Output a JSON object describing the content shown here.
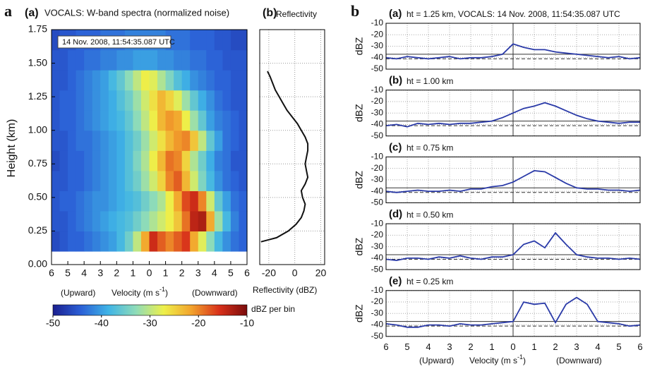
{
  "figure": {
    "panel_a": "a",
    "panel_b": "b"
  },
  "chart_data": [
    {
      "type": "heatmap",
      "panel_label": "(a)",
      "title": "VOCALS: W-band  spectra (normalized noise)",
      "annotation": "14 Nov. 2008, 11:54:35.087 UTC",
      "ylabel": "Height (km)",
      "xlabel_left": "(Upward)",
      "xlabel_parts": [
        "Velocity (m s",
        "-1",
        ")"
      ],
      "xlabel_right": "(Downward)",
      "xlim": [
        -6,
        6
      ],
      "ylim": [
        0,
        1.75
      ],
      "xticks": [
        {
          "value": -6,
          "label": "6"
        },
        {
          "value": -5,
          "label": "5"
        },
        {
          "value": -4,
          "label": "4"
        },
        {
          "value": -3,
          "label": "3"
        },
        {
          "value": -2,
          "label": "2"
        },
        {
          "value": -1,
          "label": "1"
        },
        0,
        1,
        2,
        3,
        4,
        5,
        6
      ],
      "yticks": [
        {
          "value": 0,
          "label": "0.00"
        },
        {
          "value": 0.25,
          "label": "0.25"
        },
        {
          "value": 0.5,
          "label": "0.50"
        },
        {
          "value": 0.75,
          "label": "0.75"
        },
        {
          "value": 1,
          "label": "1.00"
        },
        {
          "value": 1.25,
          "label": "1.25"
        },
        {
          "value": 1.5,
          "label": "1.50"
        },
        {
          "value": 1.75,
          "label": "1.75"
        }
      ],
      "x_edges": [
        -6,
        -5.5,
        -5,
        -4.5,
        -4,
        -3.5,
        -3,
        -2.5,
        -2,
        -1.5,
        -1,
        -0.5,
        0,
        0.5,
        1,
        1.5,
        2,
        2.5,
        3,
        3.5,
        4,
        4.5,
        5,
        5.5,
        6
      ],
      "y_edges": [
        0.1,
        0.25,
        0.4,
        0.55,
        0.7,
        0.85,
        1.0,
        1.15,
        1.3,
        1.45,
        1.6,
        1.75
      ],
      "values": [
        [
          -46,
          -45,
          -44,
          -44,
          -43,
          -42,
          -41,
          -40,
          -38,
          -35,
          -30,
          -22,
          -15,
          -18,
          -20,
          -18,
          -16,
          -22,
          -28,
          -33,
          -38,
          -41,
          -43,
          -44
        ],
        [
          -45,
          -45,
          -44,
          -43,
          -42,
          -41,
          -40,
          -39,
          -38,
          -37,
          -35,
          -33,
          -31,
          -29,
          -27,
          -24,
          -19,
          -14,
          -13,
          -22,
          -32,
          -38,
          -42,
          -44
        ],
        [
          -45,
          -44,
          -44,
          -43,
          -42,
          -41,
          -41,
          -40,
          -39,
          -38,
          -37,
          -35,
          -33,
          -31,
          -27,
          -22,
          -17,
          -15,
          -20,
          -29,
          -36,
          -40,
          -43,
          -44
        ],
        [
          -45,
          -45,
          -44,
          -44,
          -43,
          -42,
          -41,
          -40,
          -39,
          -37,
          -35,
          -32,
          -29,
          -25,
          -20,
          -18,
          -23,
          -29,
          -34,
          -38,
          -41,
          -43,
          -44,
          -45
        ],
        [
          -46,
          -45,
          -44,
          -44,
          -43,
          -42,
          -41,
          -40,
          -39,
          -37,
          -34,
          -31,
          -27,
          -23,
          -19,
          -20,
          -25,
          -31,
          -35,
          -39,
          -42,
          -43,
          -45,
          -45
        ],
        [
          -45,
          -45,
          -44,
          -43,
          -43,
          -42,
          -41,
          -40,
          -39,
          -37,
          -35,
          -32,
          -29,
          -26,
          -23,
          -21,
          -20,
          -24,
          -30,
          -36,
          -40,
          -43,
          -44,
          -45
        ],
        [
          -45,
          -44,
          -44,
          -43,
          -42,
          -41,
          -40,
          -39,
          -38,
          -36,
          -33,
          -30,
          -27,
          -23,
          -21,
          -22,
          -27,
          -32,
          -36,
          -40,
          -42,
          -43,
          -44,
          -45
        ],
        [
          -45,
          -44,
          -44,
          -43,
          -42,
          -41,
          -40,
          -39,
          -37,
          -35,
          -32,
          -29,
          -26,
          -23,
          -25,
          -28,
          -32,
          -36,
          -39,
          -41,
          -43,
          -44,
          -45,
          -45
        ],
        [
          -45,
          -45,
          -44,
          -43,
          -42,
          -41,
          -40,
          -38,
          -36,
          -33,
          -30,
          -27,
          -28,
          -31,
          -34,
          -37,
          -39,
          -41,
          -42,
          -43,
          -44,
          -44,
          -45,
          -45
        ],
        [
          -45,
          -45,
          -44,
          -44,
          -43,
          -43,
          -42,
          -42,
          -41,
          -41,
          -40,
          -40,
          -40,
          -41,
          -41,
          -42,
          -42,
          -43,
          -43,
          -44,
          -44,
          -45,
          -45,
          -45
        ],
        [
          -46,
          -45,
          -45,
          -44,
          -44,
          -44,
          -43,
          -43,
          -43,
          -42,
          -42,
          -42,
          -42,
          -42,
          -43,
          -43,
          -43,
          -44,
          -44,
          -44,
          -45,
          -45,
          -46,
          -46
        ]
      ],
      "colormap": [
        "#1b1f8f",
        "#2b5fd6",
        "#3fb4e6",
        "#8fdcb8",
        "#eef04a",
        "#f2a22c",
        "#d8301a",
        "#7a0c0c"
      ],
      "colorbar": {
        "label": "dBZ per bin",
        "lim": [
          -50,
          -10
        ],
        "ticks": [
          -50,
          -40,
          -30,
          -20,
          -10
        ]
      }
    },
    {
      "type": "profile",
      "panel_label": "(b)",
      "title": "Reflectivity",
      "xlabel": "Reflectivity (dBZ)",
      "xlim": [
        -27,
        23
      ],
      "ylim": [
        0,
        1.75
      ],
      "xticks": [
        -20,
        0,
        20
      ],
      "yticks": [
        0,
        0.25,
        0.5,
        0.75,
        1,
        1.25,
        1.5,
        1.75
      ],
      "show_ytick_labels": false,
      "grid": true,
      "color": "#111111",
      "y": [
        1.44,
        1.4,
        1.35,
        1.3,
        1.25,
        1.2,
        1.15,
        1.1,
        1.05,
        1.0,
        0.95,
        0.9,
        0.85,
        0.8,
        0.75,
        0.7,
        0.65,
        0.6,
        0.55,
        0.5,
        0.45,
        0.4,
        0.35,
        0.3,
        0.25,
        0.2,
        0.17
      ],
      "values": [
        -21,
        -19,
        -17,
        -15,
        -12,
        -9,
        -6,
        -2,
        2,
        5,
        8,
        10,
        10,
        9,
        8,
        9,
        10,
        8,
        5,
        6,
        8,
        7,
        5,
        1,
        -5,
        -14,
        -26
      ]
    },
    {
      "type": "line",
      "panel_label": "(a)",
      "title": "ht = 1.25 km, VOCALS: 14 Nov. 2008, 11:54:35.087 UTC",
      "ylabel": "dBZ",
      "xlim": [
        -6,
        6
      ],
      "ylim": [
        -50,
        -10
      ],
      "yticks": [
        -10,
        -20,
        -30,
        -40,
        -50
      ],
      "grid": true,
      "vlines": [
        0
      ],
      "xticks": [
        -6,
        -5,
        -4,
        -3,
        -2,
        -1,
        0,
        1,
        2,
        3,
        4,
        5,
        6
      ],
      "show_xtick_labels": false,
      "hlines": [
        {
          "value": -37,
          "dashed": false
        },
        {
          "value": -41,
          "dashed": true
        }
      ],
      "color": "#2a3aa8",
      "x": [
        -6,
        -5.5,
        -5,
        -4.5,
        -4,
        -3.5,
        -3,
        -2.5,
        -2,
        -1.5,
        -1,
        -0.5,
        0,
        0.5,
        1,
        1.5,
        2,
        2.5,
        3,
        3.5,
        4,
        4.5,
        5,
        5.5,
        6
      ],
      "values": [
        -40,
        -41,
        -39,
        -40,
        -41,
        -40,
        -39,
        -41,
        -40,
        -40,
        -39,
        -37,
        -28,
        -31,
        -33,
        -33,
        -35,
        -36,
        -37,
        -38,
        -39,
        -40,
        -39,
        -41,
        -40
      ]
    },
    {
      "type": "line",
      "panel_label": "(b)",
      "title": "ht = 1.00 km",
      "ylabel": "dBZ",
      "xlim": [
        -6,
        6
      ],
      "ylim": [
        -50,
        -10
      ],
      "yticks": [
        -10,
        -20,
        -30,
        -40,
        -50
      ],
      "grid": true,
      "vlines": [
        0
      ],
      "xticks": [
        -6,
        -5,
        -4,
        -3,
        -2,
        -1,
        0,
        1,
        2,
        3,
        4,
        5,
        6
      ],
      "show_xtick_labels": false,
      "hlines": [
        {
          "value": -37,
          "dashed": false
        },
        {
          "value": -41,
          "dashed": true
        }
      ],
      "color": "#2a3aa8",
      "x": [
        -6,
        -5.5,
        -5,
        -4.5,
        -4,
        -3.5,
        -3,
        -2.5,
        -2,
        -1.5,
        -1,
        -0.5,
        0,
        0.5,
        1,
        1.5,
        2,
        2.5,
        3,
        3.5,
        4,
        4.5,
        5,
        5.5,
        6
      ],
      "values": [
        -41,
        -40,
        -42,
        -39,
        -40,
        -39,
        -40,
        -39,
        -39,
        -38,
        -37,
        -34,
        -30,
        -26,
        -24,
        -21,
        -24,
        -28,
        -32,
        -35,
        -37,
        -38,
        -39,
        -38,
        -38
      ]
    },
    {
      "type": "line",
      "panel_label": "(c)",
      "title": "ht = 0.75 km",
      "ylabel": "dBZ",
      "xlim": [
        -6,
        6
      ],
      "ylim": [
        -50,
        -10
      ],
      "yticks": [
        -10,
        -20,
        -30,
        -40,
        -50
      ],
      "grid": true,
      "vlines": [
        0
      ],
      "xticks": [
        -6,
        -5,
        -4,
        -3,
        -2,
        -1,
        0,
        1,
        2,
        3,
        4,
        5,
        6
      ],
      "show_xtick_labels": false,
      "hlines": [
        {
          "value": -37,
          "dashed": false
        },
        {
          "value": -41,
          "dashed": true
        }
      ],
      "color": "#2a3aa8",
      "x": [
        -6,
        -5.5,
        -5,
        -4.5,
        -4,
        -3.5,
        -3,
        -2.5,
        -2,
        -1.5,
        -1,
        -0.5,
        0,
        0.5,
        1,
        1.5,
        2,
        2.5,
        3,
        3.5,
        4,
        4.5,
        5,
        5.5,
        6
      ],
      "values": [
        -40,
        -41,
        -40,
        -39,
        -40,
        -40,
        -39,
        -40,
        -38,
        -38,
        -36,
        -35,
        -32,
        -27,
        -22,
        -23,
        -28,
        -33,
        -37,
        -38,
        -38,
        -39,
        -39,
        -40,
        -39
      ]
    },
    {
      "type": "line",
      "panel_label": "(d)",
      "title": "ht = 0.50 km",
      "ylabel": "dBZ",
      "xlim": [
        -6,
        6
      ],
      "ylim": [
        -50,
        -10
      ],
      "yticks": [
        -10,
        -20,
        -30,
        -40,
        -50
      ],
      "grid": true,
      "vlines": [
        0
      ],
      "xticks": [
        -6,
        -5,
        -4,
        -3,
        -2,
        -1,
        0,
        1,
        2,
        3,
        4,
        5,
        6
      ],
      "show_xtick_labels": false,
      "hlines": [
        {
          "value": -37,
          "dashed": false
        },
        {
          "value": -41,
          "dashed": true
        }
      ],
      "color": "#2a3aa8",
      "x": [
        -6,
        -5.5,
        -5,
        -4.5,
        -4,
        -3.5,
        -3,
        -2.5,
        -2,
        -1.5,
        -1,
        -0.5,
        0,
        0.5,
        1,
        1.5,
        2,
        2.5,
        3,
        3.5,
        4,
        4.5,
        5,
        5.5,
        6
      ],
      "values": [
        -41,
        -42,
        -40,
        -40,
        -41,
        -39,
        -40,
        -38,
        -40,
        -41,
        -39,
        -39,
        -37,
        -28,
        -25,
        -31,
        -18,
        -28,
        -37,
        -39,
        -40,
        -40,
        -41,
        -40,
        -41
      ]
    },
    {
      "type": "line",
      "panel_label": "(e)",
      "title": "ht = 0.25 km",
      "ylabel": "dBZ",
      "xlim": [
        -6,
        6
      ],
      "ylim": [
        -50,
        -10
      ],
      "yticks": [
        -10,
        -20,
        -30,
        -40,
        -50
      ],
      "grid": true,
      "vlines": [
        0
      ],
      "xticks": [
        {
          "value": -6,
          "label": "6"
        },
        {
          "value": -5,
          "label": "5"
        },
        {
          "value": -4,
          "label": "4"
        },
        {
          "value": -3,
          "label": "3"
        },
        {
          "value": -2,
          "label": "2"
        },
        {
          "value": -1,
          "label": "1"
        },
        0,
        1,
        2,
        3,
        4,
        5,
        6
      ],
      "show_xtick_labels": true,
      "xlabel_left": "(Upward)",
      "xlabel_parts": [
        "Velocity (m s",
        "-1",
        ")"
      ],
      "xlabel_right": "(Downward)",
      "hlines": [
        {
          "value": -37,
          "dashed": false
        },
        {
          "value": -41,
          "dashed": true
        }
      ],
      "color": "#2a3aa8",
      "x": [
        -6,
        -5.5,
        -5,
        -4.5,
        -4,
        -3.5,
        -3,
        -2.5,
        -2,
        -1.5,
        -1,
        -0.5,
        0,
        0.5,
        1,
        1.5,
        2,
        2.5,
        3,
        3.5,
        4,
        4.5,
        5,
        5.5,
        6
      ],
      "values": [
        -39,
        -40,
        -42,
        -42,
        -40,
        -40,
        -41,
        -39,
        -40,
        -40,
        -39,
        -38,
        -37,
        -20,
        -22,
        -21,
        -38,
        -22,
        -16,
        -22,
        -37,
        -38,
        -39,
        -41,
        -40
      ]
    }
  ]
}
